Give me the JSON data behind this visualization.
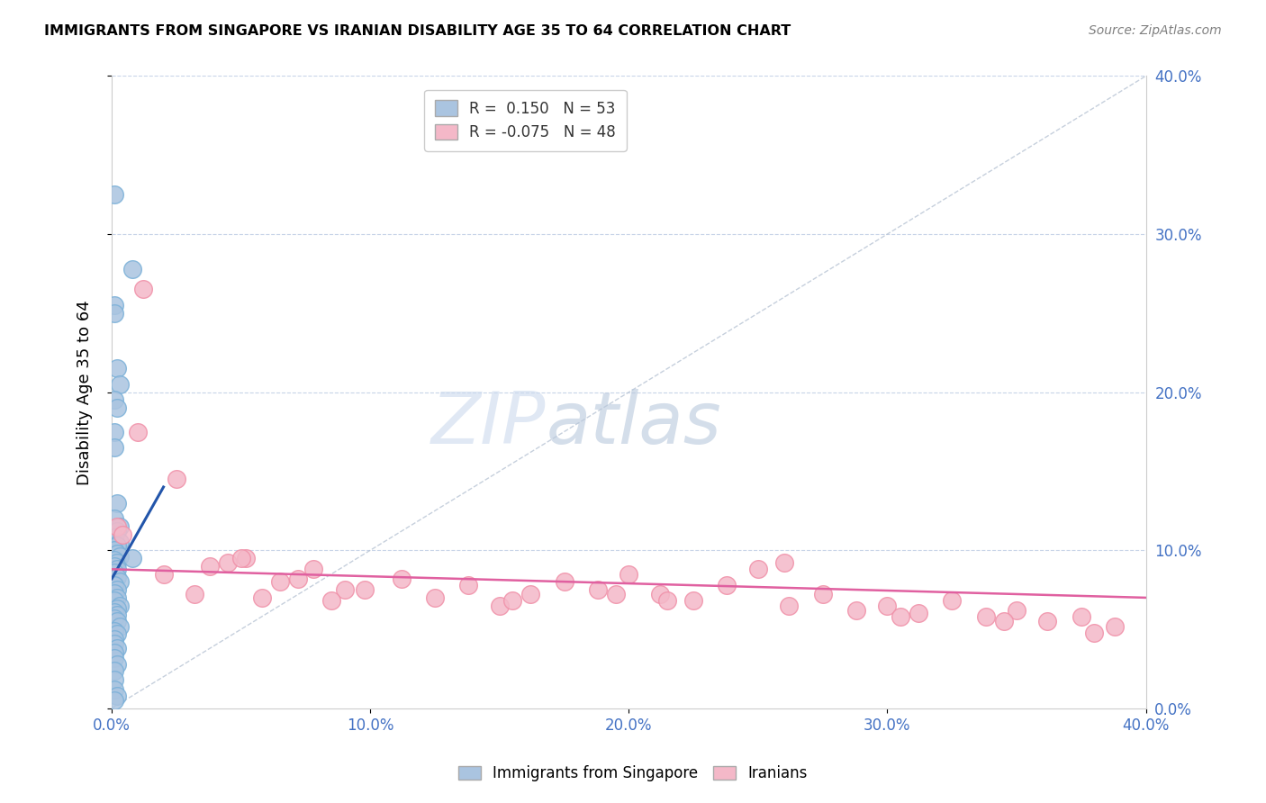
{
  "title": "IMMIGRANTS FROM SINGAPORE VS IRANIAN DISABILITY AGE 35 TO 64 CORRELATION CHART",
  "source": "Source: ZipAtlas.com",
  "xlim": [
    0.0,
    0.4
  ],
  "ylim": [
    0.0,
    0.4
  ],
  "ylabel": "Disability Age 35 to 64",
  "blue_r": 0.15,
  "blue_n": 53,
  "pink_r": -0.075,
  "pink_n": 48,
  "blue_color": "#7ab0d8",
  "blue_fill": "#aac4e0",
  "pink_color": "#f090a8",
  "pink_fill": "#f4b8c8",
  "blue_line_color": "#2255aa",
  "pink_line_color": "#e060a0",
  "grid_color": "#c8d4e8",
  "axis_color": "#4472c4",
  "diag_color": "#b8c4d4",
  "blue_scatter_x": [
    0.001,
    0.008,
    0.001,
    0.001,
    0.002,
    0.003,
    0.001,
    0.002,
    0.001,
    0.001,
    0.002,
    0.001,
    0.003,
    0.002,
    0.001,
    0.003,
    0.002,
    0.001,
    0.002,
    0.003,
    0.001,
    0.002,
    0.001,
    0.002,
    0.001,
    0.002,
    0.003,
    0.001,
    0.002,
    0.001,
    0.002,
    0.001,
    0.003,
    0.002,
    0.001,
    0.002,
    0.001,
    0.002,
    0.003,
    0.001,
    0.002,
    0.001,
    0.001,
    0.002,
    0.001,
    0.001,
    0.002,
    0.001,
    0.008,
    0.001,
    0.001,
    0.002,
    0.001
  ],
  "blue_scatter_y": [
    0.325,
    0.278,
    0.255,
    0.25,
    0.215,
    0.205,
    0.195,
    0.19,
    0.175,
    0.165,
    0.13,
    0.12,
    0.115,
    0.112,
    0.108,
    0.105,
    0.103,
    0.1,
    0.098,
    0.096,
    0.094,
    0.092,
    0.09,
    0.088,
    0.086,
    0.083,
    0.08,
    0.078,
    0.075,
    0.073,
    0.07,
    0.068,
    0.065,
    0.063,
    0.061,
    0.059,
    0.057,
    0.055,
    0.052,
    0.049,
    0.047,
    0.044,
    0.041,
    0.038,
    0.035,
    0.032,
    0.028,
    0.024,
    0.095,
    0.018,
    0.012,
    0.008,
    0.005
  ],
  "pink_scatter_x": [
    0.002,
    0.004,
    0.012,
    0.025,
    0.038,
    0.052,
    0.065,
    0.078,
    0.09,
    0.01,
    0.02,
    0.032,
    0.045,
    0.058,
    0.072,
    0.085,
    0.098,
    0.112,
    0.125,
    0.138,
    0.15,
    0.162,
    0.175,
    0.188,
    0.2,
    0.212,
    0.225,
    0.238,
    0.25,
    0.262,
    0.275,
    0.288,
    0.3,
    0.312,
    0.325,
    0.338,
    0.35,
    0.362,
    0.375,
    0.388,
    0.155,
    0.195,
    0.215,
    0.26,
    0.305,
    0.345,
    0.38,
    0.05
  ],
  "pink_scatter_y": [
    0.115,
    0.11,
    0.265,
    0.145,
    0.09,
    0.095,
    0.08,
    0.088,
    0.075,
    0.175,
    0.085,
    0.072,
    0.092,
    0.07,
    0.082,
    0.068,
    0.075,
    0.082,
    0.07,
    0.078,
    0.065,
    0.072,
    0.08,
    0.075,
    0.085,
    0.072,
    0.068,
    0.078,
    0.088,
    0.065,
    0.072,
    0.062,
    0.065,
    0.06,
    0.068,
    0.058,
    0.062,
    0.055,
    0.058,
    0.052,
    0.068,
    0.072,
    0.068,
    0.092,
    0.058,
    0.055,
    0.048,
    0.095
  ],
  "blue_trend_x": [
    0.0,
    0.02
  ],
  "blue_trend_y": [
    0.082,
    0.14
  ],
  "pink_trend_x": [
    0.0,
    0.4
  ],
  "pink_trend_y": [
    0.088,
    0.07
  ]
}
